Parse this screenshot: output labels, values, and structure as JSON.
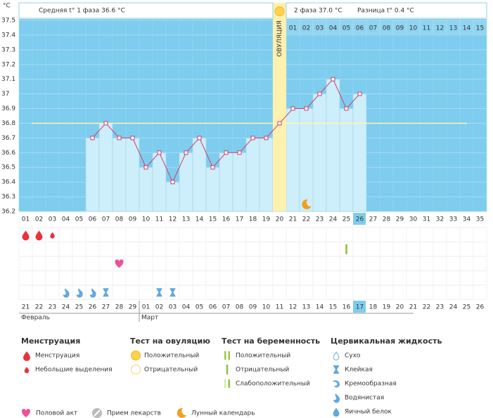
{
  "chart_data": {
    "type": "line",
    "unit": "°C",
    "header_left": "Средняя t° 1 фаза 36.6 °C",
    "header_right_1": "2 фаза 37.0 °C",
    "header_right_2": "Разница t° 0.4 °C",
    "categories": [
      "01",
      "02",
      "03",
      "04",
      "05",
      "06",
      "07",
      "08",
      "09",
      "10",
      "11",
      "12",
      "13",
      "14",
      "15",
      "16",
      "17",
      "18",
      "19",
      "20",
      "21",
      "22",
      "23",
      "24",
      "25",
      "26",
      "27",
      "28",
      "29",
      "30",
      "31",
      "32",
      "33",
      "34",
      "35"
    ],
    "values": [
      null,
      null,
      null,
      null,
      null,
      36.7,
      36.8,
      36.7,
      36.7,
      36.5,
      36.6,
      36.4,
      36.6,
      36.7,
      36.5,
      36.6,
      36.6,
      36.7,
      36.7,
      36.8,
      36.9,
      36.9,
      37.0,
      37.1,
      36.9,
      37.0,
      null,
      null,
      null,
      null,
      null,
      null,
      null,
      null,
      null
    ],
    "ylim": [
      36.2,
      37.5
    ],
    "yticks": [
      37.5,
      37.4,
      37.3,
      37.2,
      37.1,
      37,
      36.9,
      36.8,
      36.7,
      36.6,
      36.5,
      36.4,
      36.3,
      36.2
    ],
    "coverline": 36.8,
    "line_color": "#d23c6a",
    "bar_color": "#cdeefb",
    "background": "#7ecdee",
    "ovulation": {
      "day": "20",
      "label": "ОВУЛЯЦИЯ"
    },
    "phase2_days": [
      "01",
      "02",
      "03",
      "04",
      "05",
      "06",
      "07",
      "08",
      "09",
      "10",
      "11",
      "12",
      "13",
      "14",
      "15"
    ],
    "highlight_day": "26",
    "moon_day": "22",
    "symbols": [
      {
        "kind": "menstruation",
        "days": [
          "01",
          "02"
        ]
      },
      {
        "kind": "spotting",
        "days": [
          "03"
        ]
      },
      {
        "kind": "preg_negative",
        "days": [
          "25"
        ]
      },
      {
        "kind": "intercourse",
        "days": [
          "08"
        ]
      },
      {
        "kind": "watery",
        "days": [
          "04",
          "05",
          "06"
        ]
      },
      {
        "kind": "sticky",
        "days": [
          "07",
          "11",
          "12"
        ]
      }
    ],
    "dates": [
      "21",
      "22",
      "23",
      "24",
      "25",
      "26",
      "27",
      "28",
      "29",
      "01",
      "02",
      "03",
      "04",
      "05",
      "06",
      "07",
      "08",
      "09",
      "10",
      "11",
      "12",
      "13",
      "14",
      "15",
      "16",
      "17",
      "18",
      "19",
      "20",
      "21",
      "22",
      "23",
      "24",
      "25",
      "26"
    ],
    "dates_red": [
      true,
      true,
      true,
      false,
      false,
      false,
      true,
      true,
      false,
      false,
      false,
      false,
      false,
      true,
      true,
      false,
      false,
      false,
      false,
      false,
      true,
      true,
      false,
      false,
      false,
      false,
      false,
      true,
      true,
      false,
      false,
      false,
      false,
      false,
      true
    ],
    "highlight_date": "17",
    "months": [
      "Февраль",
      "Март"
    ]
  },
  "legend": [
    {
      "title": "Менструация",
      "items": [
        {
          "icon": "menstruation",
          "label": "Менструация"
        },
        {
          "icon": "spotting",
          "label": "Небольшие выделения"
        }
      ]
    },
    {
      "title": "Тест на овуляцию",
      "items": [
        {
          "icon": "ov_positive",
          "label": "Положительный"
        },
        {
          "icon": "ov_negative",
          "label": "Отрицательный"
        }
      ]
    },
    {
      "title": "Тест на беременность",
      "items": [
        {
          "icon": "preg_positive",
          "label": "Положительный"
        },
        {
          "icon": "preg_negative",
          "label": "Отрицательный"
        },
        {
          "icon": "preg_weak",
          "label": "Слабоположительный"
        }
      ]
    },
    {
      "title": "Цервикальная жидкость",
      "items": [
        {
          "icon": "dry",
          "label": "Сухо"
        },
        {
          "icon": "sticky",
          "label": "Клейкая"
        },
        {
          "icon": "creamy",
          "label": "Кремообразная"
        },
        {
          "icon": "watery",
          "label": "Водянистая"
        },
        {
          "icon": "eggwhite",
          "label": "Яичный белок"
        }
      ]
    }
  ],
  "legend_bottom": [
    {
      "icon": "intercourse",
      "label": "Половой акт"
    },
    {
      "icon": "medicine",
      "label": "Прием лекарств"
    },
    {
      "icon": "moon",
      "label": "Лунный календарь"
    }
  ]
}
